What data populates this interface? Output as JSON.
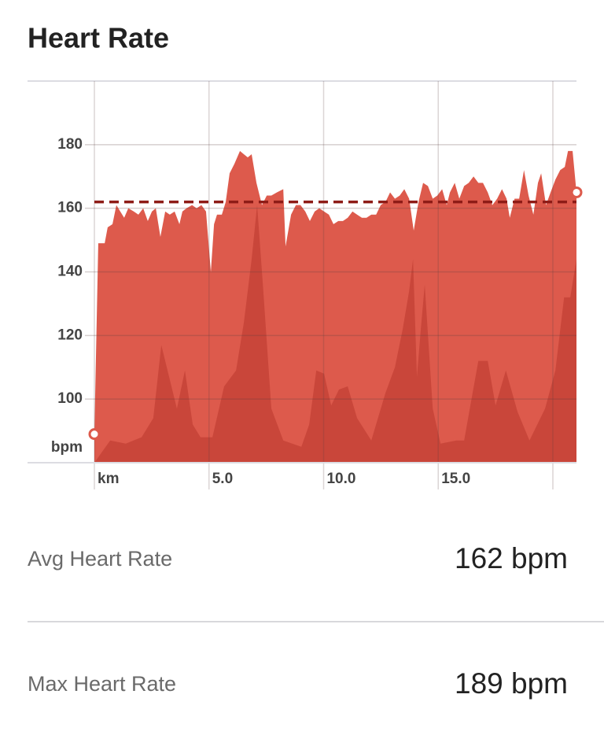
{
  "chart_data": {
    "type": "area",
    "title": "Heart Rate",
    "ylabel": "bpm",
    "xlim": [
      0,
      21.03
    ],
    "ylim": [
      80,
      200
    ],
    "yticks": [
      100,
      120,
      140,
      160,
      180
    ],
    "xticks": [
      {
        "value": 0,
        "label": "km"
      },
      {
        "value": 5,
        "label": "5.0"
      },
      {
        "value": 10,
        "label": "10.0"
      },
      {
        "value": 15,
        "label": "15.0"
      }
    ],
    "xgrid": [
      0,
      5,
      10,
      15,
      20
    ],
    "grid": true,
    "avg_line": 162,
    "avg_color": "#8e1c17",
    "series": [
      {
        "color": "#dd5a4c",
        "x": [
          0,
          0.17,
          0.45,
          0.58,
          0.79,
          0.96,
          1.13,
          1.3,
          1.48,
          1.72,
          1.92,
          2.13,
          2.33,
          2.51,
          2.68,
          2.88,
          3.09,
          3.29,
          3.5,
          3.71,
          3.84,
          4.02,
          4.26,
          4.46,
          4.67,
          4.87,
          5.08,
          5.22,
          5.35,
          5.56,
          5.73,
          5.9,
          6.11,
          6.35,
          6.52,
          6.69,
          6.86,
          7.07,
          7.31,
          7.52,
          7.72,
          7.96,
          8.24,
          8.34,
          8.58,
          8.79,
          8.99,
          9.2,
          9.4,
          9.61,
          9.81,
          10.02,
          10.23,
          10.43,
          10.64,
          10.84,
          11.05,
          11.26,
          11.46,
          11.67,
          11.87,
          12.08,
          12.29,
          12.49,
          12.7,
          12.9,
          13.11,
          13.32,
          13.52,
          13.73,
          13.93,
          14.14,
          14.34,
          14.55,
          14.76,
          14.96,
          15.17,
          15.37,
          15.51,
          15.72,
          15.92,
          16.13,
          16.33,
          16.54,
          16.75,
          16.95,
          17.16,
          17.36,
          17.57,
          17.78,
          17.98,
          18.12,
          18.33,
          18.53,
          18.74,
          18.94,
          19.15,
          19.35,
          19.49,
          19.7,
          19.9,
          20.11,
          20.32,
          20.52,
          20.66,
          20.86,
          21.03
        ],
        "values": [
          89,
          149,
          149,
          154,
          155,
          161,
          159,
          157,
          160,
          159,
          158,
          160,
          156,
          159,
          160,
          151,
          159,
          158,
          159,
          155,
          159,
          160,
          161,
          160,
          161,
          159,
          140,
          155,
          158,
          158,
          162,
          171,
          174,
          178,
          177,
          176,
          177,
          168,
          161,
          164,
          164,
          165,
          166,
          148,
          158,
          161,
          161,
          159,
          156,
          159,
          160,
          159,
          158,
          155,
          156,
          156,
          157,
          159,
          158,
          157,
          157,
          158,
          158,
          161,
          162,
          165,
          163,
          164,
          166,
          163,
          153,
          162,
          168,
          167,
          163,
          164,
          166,
          161,
          165,
          168,
          163,
          167,
          168,
          170,
          168,
          168,
          165,
          161,
          163,
          166,
          163,
          157,
          163,
          163,
          172,
          164,
          158,
          168,
          171,
          161,
          165,
          169,
          172,
          173,
          178,
          178,
          165
        ]
      },
      {
        "color": "#b8362c",
        "x": [
          0,
          0.69,
          1.37,
          2.06,
          2.57,
          2.92,
          3.26,
          3.6,
          3.95,
          4.29,
          4.63,
          5.15,
          5.66,
          6.18,
          6.52,
          6.86,
          7.1,
          7.35,
          7.72,
          8.24,
          9.03,
          9.37,
          9.68,
          10.02,
          10.33,
          10.67,
          11.05,
          11.46,
          12.08,
          12.7,
          13.11,
          13.45,
          13.73,
          13.9,
          14.07,
          14.24,
          14.41,
          14.76,
          15.1,
          15.79,
          16.13,
          16.5,
          16.75,
          17.16,
          17.5,
          17.95,
          18.46,
          18.98,
          19.66,
          20.11,
          20.49,
          20.76,
          21.03
        ],
        "values": [
          80,
          87,
          86,
          88,
          94,
          117,
          107,
          97,
          109,
          92,
          88,
          88,
          104,
          109,
          124,
          144,
          161,
          136,
          97,
          87,
          85,
          92,
          109,
          108,
          98,
          103,
          104,
          94,
          87,
          102,
          110,
          122,
          134,
          144,
          107,
          122,
          136,
          97,
          86,
          87,
          87,
          102,
          112,
          112,
          98,
          109,
          96,
          87,
          97,
          109,
          132,
          132,
          144
        ]
      }
    ]
  },
  "stats": [
    {
      "label": "Avg Heart Rate",
      "value": "162 bpm"
    },
    {
      "label": "Max Heart Rate",
      "value": "189 bpm"
    }
  ]
}
